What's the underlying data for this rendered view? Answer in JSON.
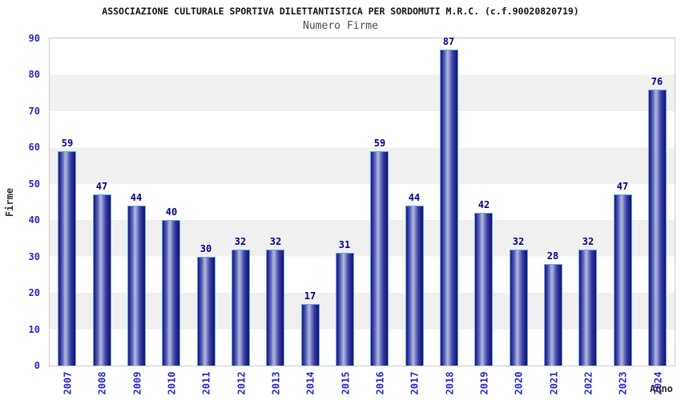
{
  "header": {
    "title": "ASSOCIAZIONE CULTURALE SPORTIVA DILETTANTISTICA PER SORDOMUTI M.R.C. (c.f.90020820719)",
    "subtitle": "Numero Firme"
  },
  "chart_data": {
    "type": "bar",
    "title": "ASSOCIAZIONE CULTURALE SPORTIVA DILETTANTISTICA PER SORDOMUTI M.R.C. (c.f.90020820719)",
    "subtitle": "Numero Firme",
    "xlabel": "Anno",
    "ylabel": "Firme",
    "categories": [
      "2007",
      "2008",
      "2009",
      "2010",
      "2011",
      "2012",
      "2013",
      "2014",
      "2015",
      "2016",
      "2017",
      "2018",
      "2019",
      "2020",
      "2021",
      "2022",
      "2023",
      "2024"
    ],
    "values": [
      59,
      47,
      44,
      40,
      30,
      32,
      32,
      17,
      31,
      59,
      44,
      87,
      42,
      32,
      28,
      32,
      47,
      76
    ],
    "ylim": [
      0,
      90
    ],
    "ytick_step": 10,
    "legend": "none",
    "grid": "alternating-horizontal-bands",
    "bar_labels_shown": true,
    "colors": {
      "bar_dark": "#1b1b77",
      "bar_light": "#aab2de",
      "bar_outline": "#63a9e8",
      "tick_label": "#2626cc",
      "value_label": "#00008b",
      "band_gray": "#f0f0f0",
      "plot_border": "#cccccc",
      "title": "#141414",
      "subtitle": "#4d4d4d",
      "axis_title": "#333333"
    }
  }
}
